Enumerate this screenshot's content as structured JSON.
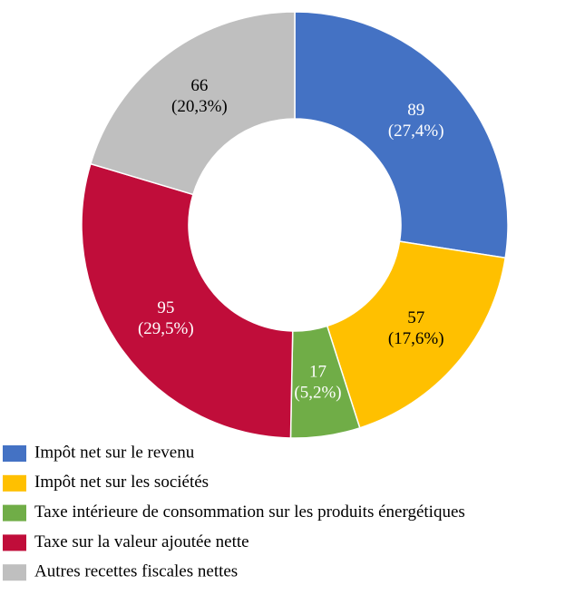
{
  "chart_data": {
    "type": "donut",
    "categories": [
      "Impôt net sur le revenu",
      "Impôt net sur les sociétés",
      "Taxe intérieure de consommation sur les produits énergétiques",
      "Taxe sur la valeur ajoutée nette",
      "Autres recettes fiscales nettes"
    ],
    "values": [
      89,
      57,
      17,
      95,
      66
    ],
    "percent_labels": [
      "(27,4%)",
      "(17,6%)",
      "(5,2%)",
      "(29,5%)",
      "(20,3%)"
    ],
    "colors": [
      "#4472c4",
      "#ffc000",
      "#70ad47",
      "#c00d3a",
      "#bfbfbf"
    ],
    "label_colors": [
      "#ffffff",
      "#000000",
      "#ffffff",
      "#ffffff",
      "#000000"
    ],
    "legend": "bottom-left"
  }
}
